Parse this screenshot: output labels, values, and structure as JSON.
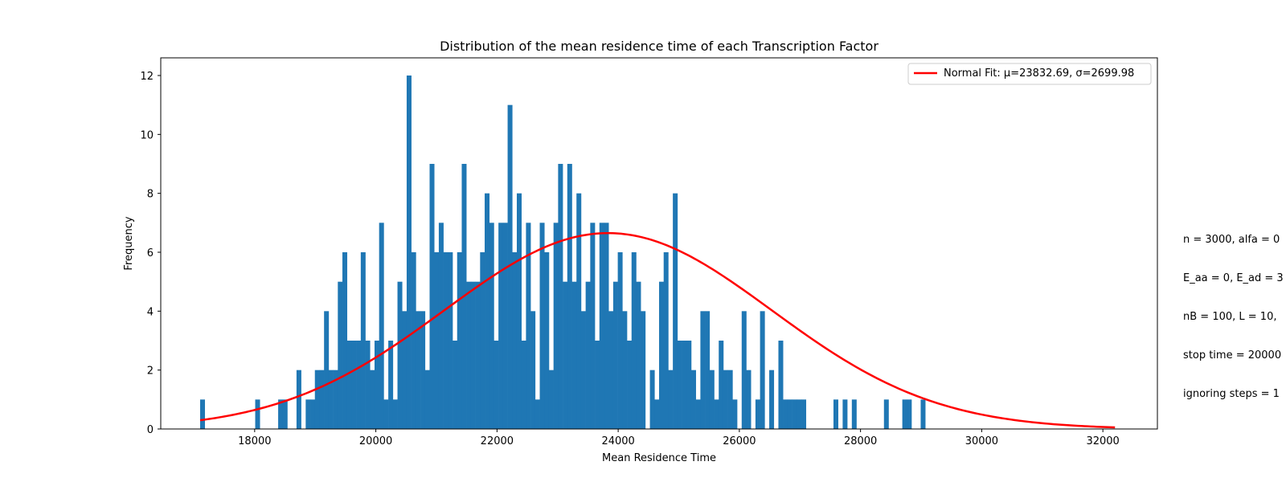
{
  "chart_data": {
    "type": "bar",
    "title": "Distribution of the mean residence time of each Transcription Factor",
    "xlabel": "Mean Residence Time",
    "ylabel": "Frequency",
    "xlim": [
      16450,
      32900
    ],
    "ylim": [
      0,
      12.6
    ],
    "xticks": [
      18000,
      20000,
      22000,
      24000,
      26000,
      28000,
      30000,
      32000
    ],
    "yticks": [
      0,
      2,
      4,
      6,
      8,
      10,
      12
    ],
    "bar_color": "#1f77b4",
    "bin_start": 17100,
    "bin_width": 75.75,
    "counts": [
      1,
      0,
      0,
      0,
      0,
      0,
      0,
      0,
      0,
      0,
      0,
      0,
      1,
      0,
      0,
      0,
      0,
      1,
      1,
      0,
      0,
      2,
      0,
      1,
      1,
      2,
      2,
      4,
      2,
      2,
      5,
      6,
      3,
      3,
      3,
      6,
      3,
      2,
      3,
      7,
      1,
      3,
      1,
      5,
      4,
      12,
      6,
      4,
      4,
      2,
      9,
      6,
      7,
      6,
      6,
      3,
      6,
      9,
      5,
      5,
      5,
      6,
      8,
      7,
      3,
      7,
      7,
      11,
      6,
      8,
      3,
      7,
      4,
      1,
      7,
      6,
      2,
      7,
      9,
      5,
      9,
      5,
      8,
      4,
      5,
      7,
      3,
      7,
      7,
      4,
      5,
      6,
      4,
      3,
      6,
      5,
      4,
      0,
      2,
      1,
      5,
      6,
      2,
      8,
      3,
      3,
      3,
      2,
      1,
      4,
      4,
      2,
      1,
      3,
      2,
      2,
      1,
      0,
      4,
      2,
      0,
      1,
      4,
      0,
      2,
      0,
      3,
      1,
      1,
      1,
      1,
      1,
      0,
      0,
      0,
      0,
      0,
      0,
      1,
      0,
      1,
      0,
      1,
      0,
      0,
      0,
      0,
      0,
      0,
      1,
      0,
      0,
      0,
      1,
      1,
      0,
      0,
      1
    ],
    "fit": {
      "name": "Normal Fit: μ=23832.69, σ=2699.98",
      "mu": 23832.69,
      "sigma": 2699.98,
      "peak": 6.65,
      "range": [
        17100,
        32200
      ],
      "color": "#ff0000"
    },
    "legend_position": "top-right",
    "annotation_lines": [
      "n = 3000, alfa = 0",
      "E_aa = 0, E_ad = 3",
      "nB = 100, L = 10,",
      "stop time = 20000",
      "ignoring steps = 1"
    ]
  }
}
